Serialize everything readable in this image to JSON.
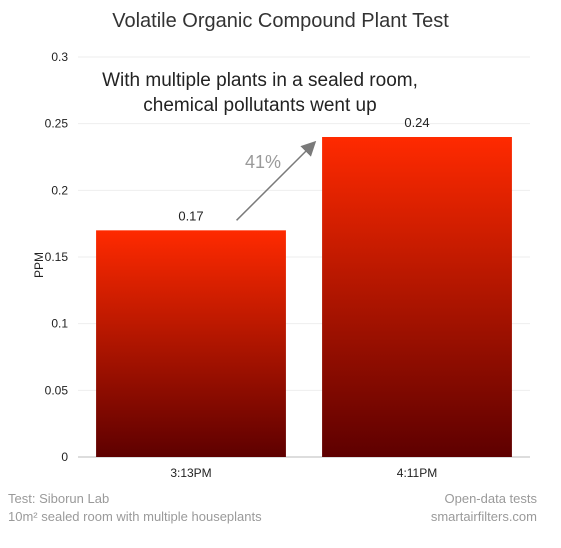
{
  "chart_data": {
    "type": "bar",
    "title": "Volatile Organic Compound Plant Test",
    "ylabel": "PPM",
    "xlabel": "",
    "categories": [
      "3:13PM",
      "4:11PM"
    ],
    "values": [
      0.17,
      0.24
    ],
    "data_labels": [
      "0.17",
      "0.24"
    ],
    "ylim": [
      0,
      0.3
    ],
    "yticks": [
      "0",
      "0.05",
      "0.1",
      "0.15",
      "0.2",
      "0.25",
      "0.3"
    ],
    "grid": true,
    "bar_color_top": "#ff2a00",
    "bar_color_bottom": "#5e0000",
    "annotation": {
      "text_line1": "With multiple plants in a sealed room,",
      "text_line2": "chemical pollutants went up",
      "change_label": "41%"
    }
  },
  "footer": {
    "left_line1": "Test: Siborun Lab",
    "left_line2": "10m² sealed room with multiple houseplants",
    "right_line1": "Open-data tests",
    "right_line2": "smartairfilters.com"
  }
}
